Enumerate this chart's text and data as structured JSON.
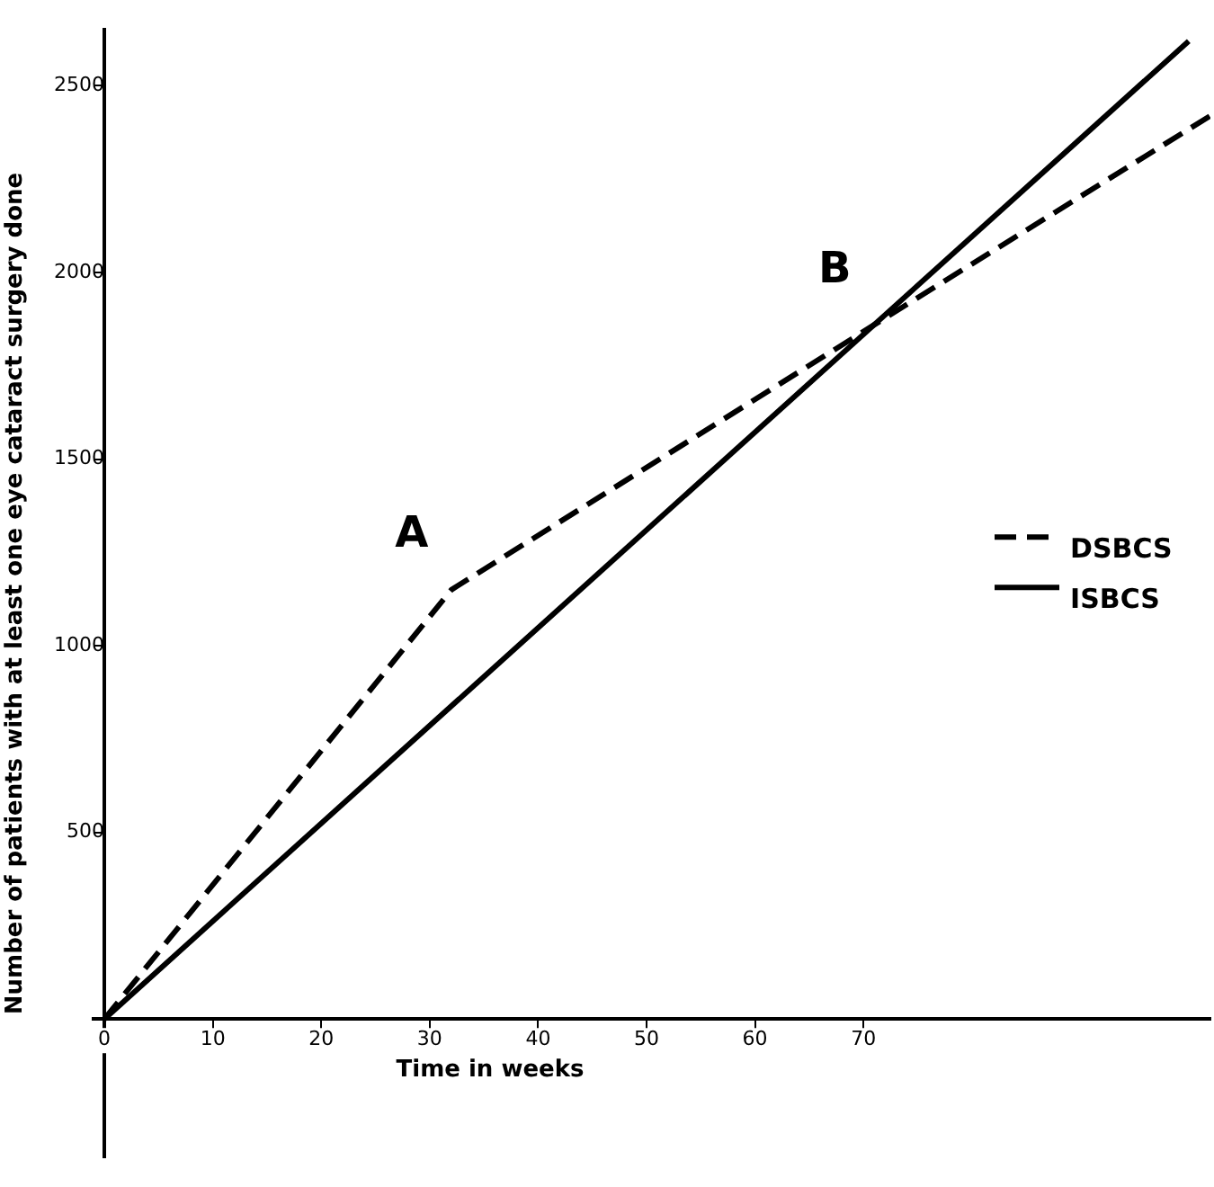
{
  "chart_data": {
    "type": "line",
    "xlabel": "Time in weeks",
    "ylabel": "Number of patients with at least one eye cataract surgery done",
    "series": [
      {
        "name": "DSBCS",
        "color": "#000000",
        "line_style": "dashed",
        "x": [
          0,
          32,
          71,
          102
        ],
        "values": [
          0,
          1150,
          1860,
          2420
        ]
      },
      {
        "name": "ISBCS",
        "color": "#000000",
        "line_style": "solid",
        "x": [
          0,
          100
        ],
        "values": [
          0,
          2620
        ]
      }
    ],
    "xlim": [
      -1,
      102
    ],
    "xticks": [
      0,
      10,
      20,
      30,
      40,
      50,
      60,
      70
    ],
    "ylim": [
      -370,
      2650
    ],
    "yticks": [
      500,
      1000,
      1500,
      2000,
      2500
    ],
    "annotations": [
      "A",
      "B"
    ],
    "grid": false,
    "legend": "right",
    "marker": "none"
  }
}
